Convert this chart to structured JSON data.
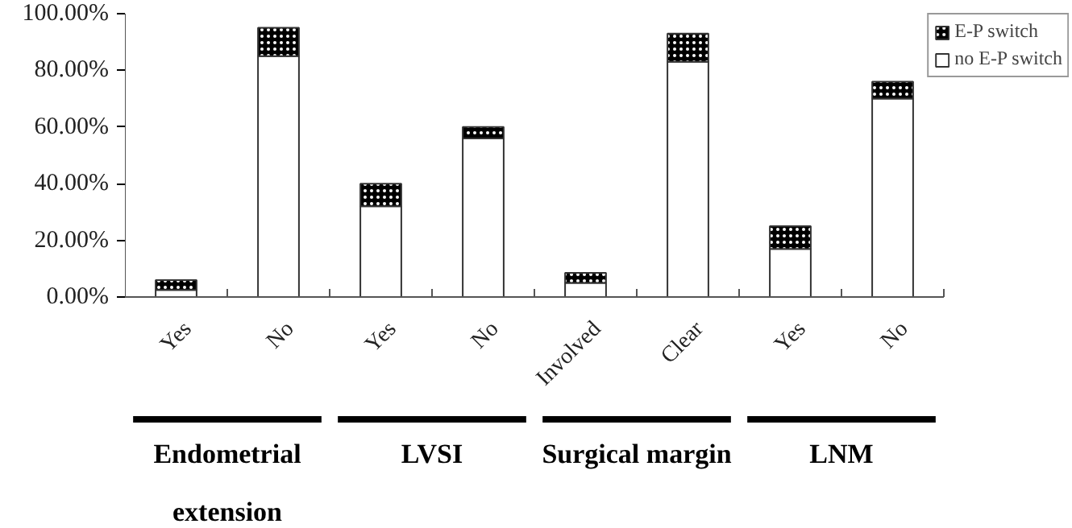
{
  "chart_data": {
    "type": "bar",
    "stacked": true,
    "categories": [
      "Yes",
      "No",
      "Yes",
      "No",
      "Involved",
      "Clear",
      "Yes",
      "No"
    ],
    "series": [
      {
        "name": "no E-P switch",
        "color": "#ffffff",
        "values": [
          2.5,
          85,
          32,
          56,
          5,
          83,
          17,
          70
        ]
      },
      {
        "name": "E-P switch",
        "color": "#000000",
        "values": [
          3.5,
          10,
          8,
          4,
          3.5,
          10,
          8,
          6
        ]
      }
    ],
    "ylim": [
      0,
      100
    ],
    "yticks": [
      {
        "value": 0,
        "label": "0.00%"
      },
      {
        "value": 20,
        "label": "20.00%"
      },
      {
        "value": 40,
        "label": "40.00%"
      },
      {
        "value": 60,
        "label": "60.00%"
      },
      {
        "value": 80,
        "label": "80.00%"
      },
      {
        "value": 100,
        "label": "100.00%"
      }
    ],
    "annotations": [
      "Endometrial extension",
      "LVSI",
      "Surgical margin",
      "LNM"
    ],
    "legend": "top right",
    "grid": false
  }
}
